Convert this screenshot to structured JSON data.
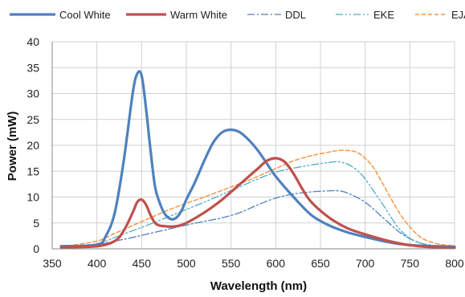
{
  "chart_data": {
    "type": "line",
    "title": "",
    "xlabel": "Wavelength (nm)",
    "ylabel": "Power (mW)",
    "xlim": [
      350,
      800
    ],
    "ylim": [
      0,
      40
    ],
    "x_ticks": [
      "350",
      "400",
      "450",
      "500",
      "550",
      "600",
      "650",
      "700",
      "750",
      "800"
    ],
    "y_ticks": [
      "0",
      "5",
      "10",
      "15",
      "20",
      "25",
      "30",
      "35",
      "40"
    ],
    "grid": "vertical and horizontal major gridlines",
    "legend_position": "top",
    "series": [
      {
        "name": "Cool White",
        "color": "#4f81bd",
        "style": "solid-thick",
        "x": [
          360,
          400,
          410,
          420,
          430,
          440,
          445,
          450,
          455,
          460,
          465,
          470,
          475,
          480,
          485,
          490,
          495,
          500,
          510,
          520,
          530,
          540,
          550,
          560,
          570,
          580,
          590,
          600,
          620,
          640,
          660,
          680,
          700,
          720,
          740,
          760,
          780,
          800
        ],
        "y": [
          0.5,
          0.8,
          2.5,
          7,
          17,
          30,
          33.8,
          33.5,
          27,
          19,
          12,
          9,
          7,
          6,
          5.7,
          6.2,
          7.5,
          9.5,
          13,
          17,
          20.5,
          22.5,
          23,
          22.5,
          21,
          19,
          16.5,
          14,
          10,
          6.5,
          4.5,
          3.2,
          2.3,
          1.5,
          0.9,
          0.6,
          0.5,
          0.4
        ]
      },
      {
        "name": "Warm White",
        "color": "#c0504d",
        "style": "solid-thick",
        "x": [
          360,
          400,
          420,
          430,
          440,
          445,
          450,
          455,
          460,
          465,
          470,
          475,
          480,
          490,
          500,
          520,
          540,
          560,
          580,
          590,
          600,
          610,
          620,
          630,
          640,
          660,
          680,
          700,
          720,
          740,
          760,
          780,
          800
        ],
        "y": [
          0.3,
          0.5,
          1.5,
          3.5,
          7,
          9,
          9.5,
          8.5,
          6.5,
          5,
          4.5,
          4.4,
          4.3,
          4.4,
          5,
          7,
          9.5,
          12.5,
          15.5,
          17,
          17.5,
          16.8,
          14.5,
          11.5,
          9,
          6,
          4,
          2.8,
          1.8,
          1,
          0.5,
          0.3,
          0.2
        ]
      },
      {
        "name": "DDL",
        "color": "#4f81bd",
        "style": "dash-dot",
        "x": [
          360,
          400,
          420,
          440,
          460,
          480,
          500,
          520,
          540,
          560,
          580,
          600,
          620,
          640,
          660,
          670,
          680,
          700,
          720,
          740,
          760,
          780,
          800
        ],
        "y": [
          0.3,
          0.8,
          1.5,
          2.2,
          3,
          3.8,
          4.6,
          5.3,
          6,
          7,
          8.5,
          9.8,
          10.6,
          11,
          11.2,
          11.2,
          10.8,
          9,
          6,
          3,
          1.2,
          0.6,
          0.4
        ]
      },
      {
        "name": "EKE",
        "color": "#4bacc6",
        "style": "dash-dot-dot",
        "x": [
          360,
          400,
          420,
          440,
          460,
          480,
          500,
          520,
          540,
          560,
          580,
          600,
          620,
          640,
          660,
          670,
          680,
          690,
          700,
          720,
          740,
          760,
          780,
          800
        ],
        "y": [
          0.4,
          1,
          2.2,
          3.5,
          4.8,
          6.2,
          7.6,
          9,
          10.5,
          12,
          13.5,
          14.8,
          15.6,
          16.2,
          16.7,
          16.8,
          16.4,
          15.3,
          13.5,
          8.5,
          3.5,
          1.2,
          0.6,
          0.5
        ]
      },
      {
        "name": "EJA",
        "color": "#f79646",
        "style": "dashed",
        "x": [
          360,
          400,
          420,
          440,
          460,
          480,
          500,
          520,
          540,
          560,
          580,
          600,
          620,
          640,
          660,
          670,
          680,
          690,
          700,
          710,
          720,
          740,
          760,
          780,
          800
        ],
        "y": [
          0.4,
          1.5,
          3,
          4.5,
          6,
          7.5,
          8.8,
          10,
          11.3,
          12.6,
          14,
          15.5,
          17,
          18,
          18.7,
          19,
          19,
          18.7,
          17.5,
          15.5,
          12.5,
          6.5,
          2.5,
          1,
          0.6
        ]
      }
    ]
  }
}
